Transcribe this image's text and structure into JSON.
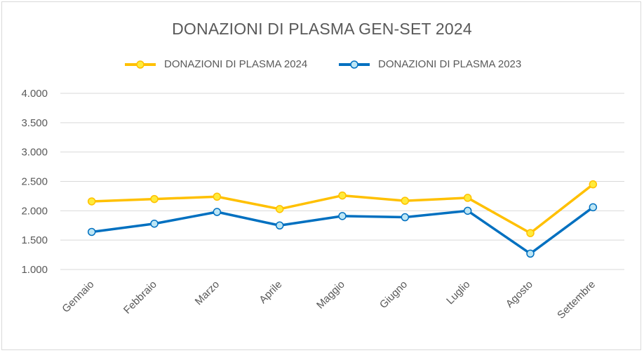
{
  "chart_data": {
    "type": "line",
    "title": "DONAZIONI DI PLASMA GEN-SET 2024",
    "categories": [
      "Gennaio",
      "Febbraio",
      "Marzo",
      "Aprile",
      "Maggio",
      "Giugno",
      "Luglio",
      "Agosto",
      "Settembre"
    ],
    "series": [
      {
        "name": "DONAZIONI DI PLASMA 2024",
        "color": "#ffc000",
        "marker_fill": "#ffeb3b",
        "values": [
          2160,
          2200,
          2240,
          2030,
          2260,
          2170,
          2220,
          1620,
          2450
        ]
      },
      {
        "name": "DONAZIONI DI PLASMA 2023",
        "color": "#0070c0",
        "marker_fill": "#bde6f5",
        "values": [
          1640,
          1780,
          1980,
          1750,
          1910,
          1890,
          2000,
          1270,
          2060
        ]
      }
    ],
    "y_ticks": [
      "1.000",
      "1.500",
      "2.000",
      "2.500",
      "3.000",
      "3.500",
      "4.000"
    ],
    "ylim": [
      1000,
      4000
    ],
    "xlabel": "",
    "ylabel": "",
    "grid": true,
    "legend_position": "top"
  }
}
